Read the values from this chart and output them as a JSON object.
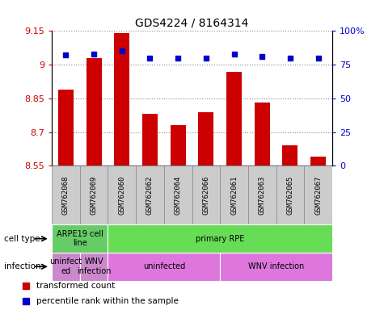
{
  "title": "GDS4224 / 8164314",
  "samples": [
    "GSM762068",
    "GSM762069",
    "GSM762060",
    "GSM762062",
    "GSM762064",
    "GSM762066",
    "GSM762061",
    "GSM762063",
    "GSM762065",
    "GSM762067"
  ],
  "transformed_counts": [
    8.89,
    9.03,
    9.14,
    8.78,
    8.73,
    8.79,
    8.97,
    8.83,
    8.64,
    8.59
  ],
  "percentile_ranks": [
    82,
    83,
    85,
    80,
    80,
    80,
    83,
    81,
    80,
    80
  ],
  "ylim_left": [
    8.55,
    9.15
  ],
  "ylim_right": [
    0,
    100
  ],
  "yticks_left": [
    8.55,
    8.7,
    8.85,
    9.0,
    9.15
  ],
  "yticks_right": [
    0,
    25,
    50,
    75,
    100
  ],
  "ytick_labels_left": [
    "8.55",
    "8.7",
    "8.85",
    "9",
    "9.15"
  ],
  "ytick_labels_right": [
    "0",
    "25",
    "50",
    "75",
    "100%"
  ],
  "bar_color": "#cc0000",
  "dot_color": "#0000cc",
  "bar_bottom": 8.55,
  "cell_type_groups": [
    {
      "label": "ARPE19 cell\nline",
      "start": 0,
      "end": 2,
      "color": "#66cc66"
    },
    {
      "label": "primary RPE",
      "start": 2,
      "end": 10,
      "color": "#66dd55"
    }
  ],
  "infection_groups": [
    {
      "label": "uninfect\ned",
      "start": 0,
      "end": 1,
      "color": "#cc88cc"
    },
    {
      "label": "WNV\ninfection",
      "start": 1,
      "end": 2,
      "color": "#cc88cc"
    },
    {
      "label": "uninfected",
      "start": 2,
      "end": 6,
      "color": "#dd77dd"
    },
    {
      "label": "WNV infection",
      "start": 6,
      "end": 10,
      "color": "#dd77dd"
    }
  ],
  "legend_items": [
    {
      "label": "transformed count",
      "color": "#cc0000"
    },
    {
      "label": "percentile rank within the sample",
      "color": "#0000cc"
    }
  ],
  "row_labels": [
    "cell type",
    "infection"
  ],
  "grid_color": "#888888",
  "tick_label_color_left": "#cc0000",
  "tick_label_color_right": "#0000cc",
  "sample_box_color": "#cccccc",
  "sample_box_edge": "#888888"
}
